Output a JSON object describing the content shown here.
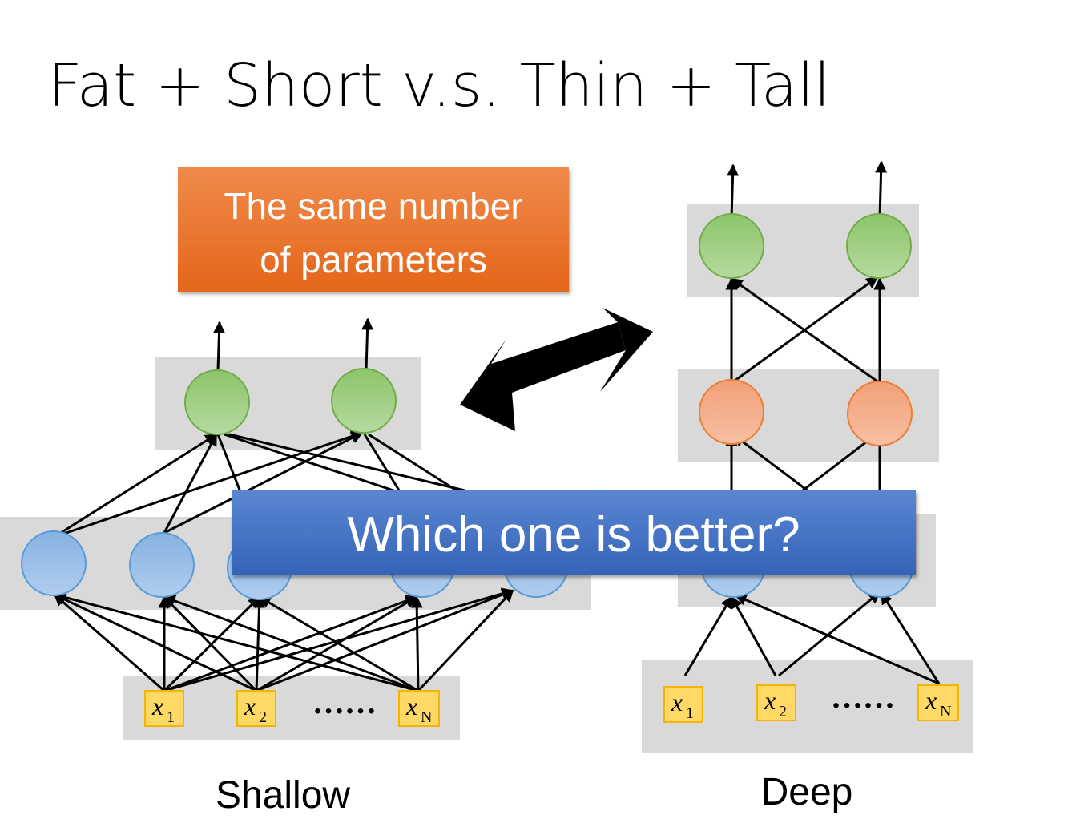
{
  "slide": {
    "title": "Fat + Short v.s. Thin + Tall",
    "callout": {
      "line1": "The same number",
      "line2": "of parameters"
    },
    "question": "Which one is better?",
    "shallow": {
      "caption": "Shallow",
      "inputs": [
        {
          "var": "x",
          "sub": "1"
        },
        {
          "var": "x",
          "sub": "2"
        },
        {
          "var": "x",
          "sub": "N"
        }
      ],
      "ellipsis": "……"
    },
    "deep": {
      "caption": "Deep",
      "inputs": [
        {
          "var": "x",
          "sub": "1"
        },
        {
          "var": "x",
          "sub": "2"
        },
        {
          "var": "x",
          "sub": "N"
        }
      ],
      "ellipsis": "……"
    }
  },
  "colors": {
    "hidden_blue": "#9dc3e6",
    "output_green": "#a9d18e",
    "hidden_orange": "#f4b183",
    "input_yellow": "#ffd966",
    "layer_gray": "#d9d9d9",
    "callout_orange": "#ed7d31",
    "question_blue": "#4472c4"
  }
}
